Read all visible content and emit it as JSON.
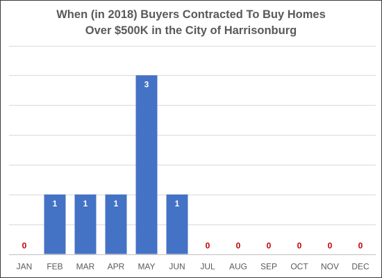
{
  "chart_data": {
    "type": "bar",
    "title": "When (in 2018) Buyers Contracted To Buy Homes Over $500K in the City of Harrisonburg",
    "title_lines": [
      "When (in 2018) Buyers Contracted To Buy Homes",
      "Over $500K in the City of Harrisonburg"
    ],
    "categories": [
      "JAN",
      "FEB",
      "MAR",
      "APR",
      "MAY",
      "JUN",
      "JUL",
      "AUG",
      "SEP",
      "OCT",
      "NOV",
      "DEC"
    ],
    "values": [
      0,
      1,
      1,
      1,
      3,
      1,
      0,
      0,
      0,
      0,
      0,
      0
    ],
    "xlabel": "",
    "ylabel": "",
    "ylim": [
      0,
      3.5
    ],
    "gridline_step": 0.5,
    "grid": true,
    "y_tick_labels_shown": false,
    "data_labels": true,
    "legend": "none",
    "colors": {
      "bar": "#4472c4",
      "label_inside": "#ffffff",
      "label_zero": "#c00000",
      "title": "#595959",
      "ticks": "#595959",
      "gridline": "#d9d9d9"
    }
  }
}
